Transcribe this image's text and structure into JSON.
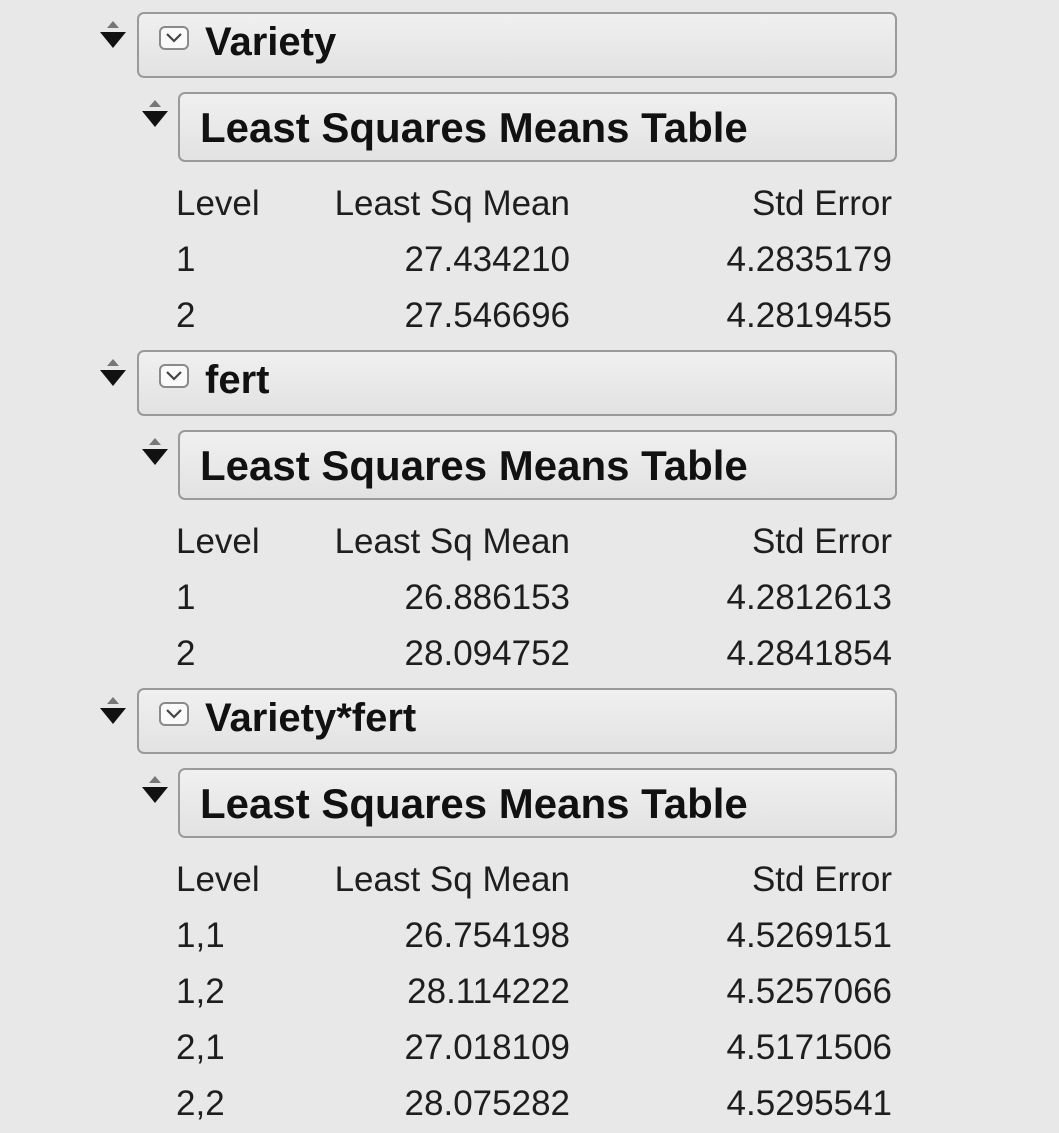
{
  "sections": [
    {
      "outer_title": "Variety",
      "inner_title": "Least Squares Means Table",
      "headers": [
        "Level",
        "Least Sq Mean",
        "Std Error"
      ],
      "rows": [
        [
          "1",
          "27.434210",
          "4.2835179"
        ],
        [
          "2",
          "27.546696",
          "4.2819455"
        ]
      ]
    },
    {
      "outer_title": "fert",
      "inner_title": "Least Squares Means Table",
      "headers": [
        "Level",
        "Least Sq Mean",
        "Std Error"
      ],
      "rows": [
        [
          "1",
          "26.886153",
          "4.2812613"
        ],
        [
          "2",
          "28.094752",
          "4.2841854"
        ]
      ]
    },
    {
      "outer_title": "Variety*fert",
      "inner_title": "Least Squares Means Table",
      "headers": [
        "Level",
        "Least Sq Mean",
        "Std Error"
      ],
      "rows": [
        [
          "1,1",
          "26.754198",
          "4.5269151"
        ],
        [
          "1,2",
          "28.114222",
          "4.5257066"
        ],
        [
          "2,1",
          "27.018109",
          "4.5171506"
        ],
        [
          "2,2",
          "28.075282",
          "4.5295541"
        ]
      ]
    }
  ],
  "icons": {
    "outer_disclosure": "disclosure-triangle-icon",
    "inner_disclosure": "disclosure-triangle-icon",
    "collapse": "collapse-chevron-icon"
  }
}
